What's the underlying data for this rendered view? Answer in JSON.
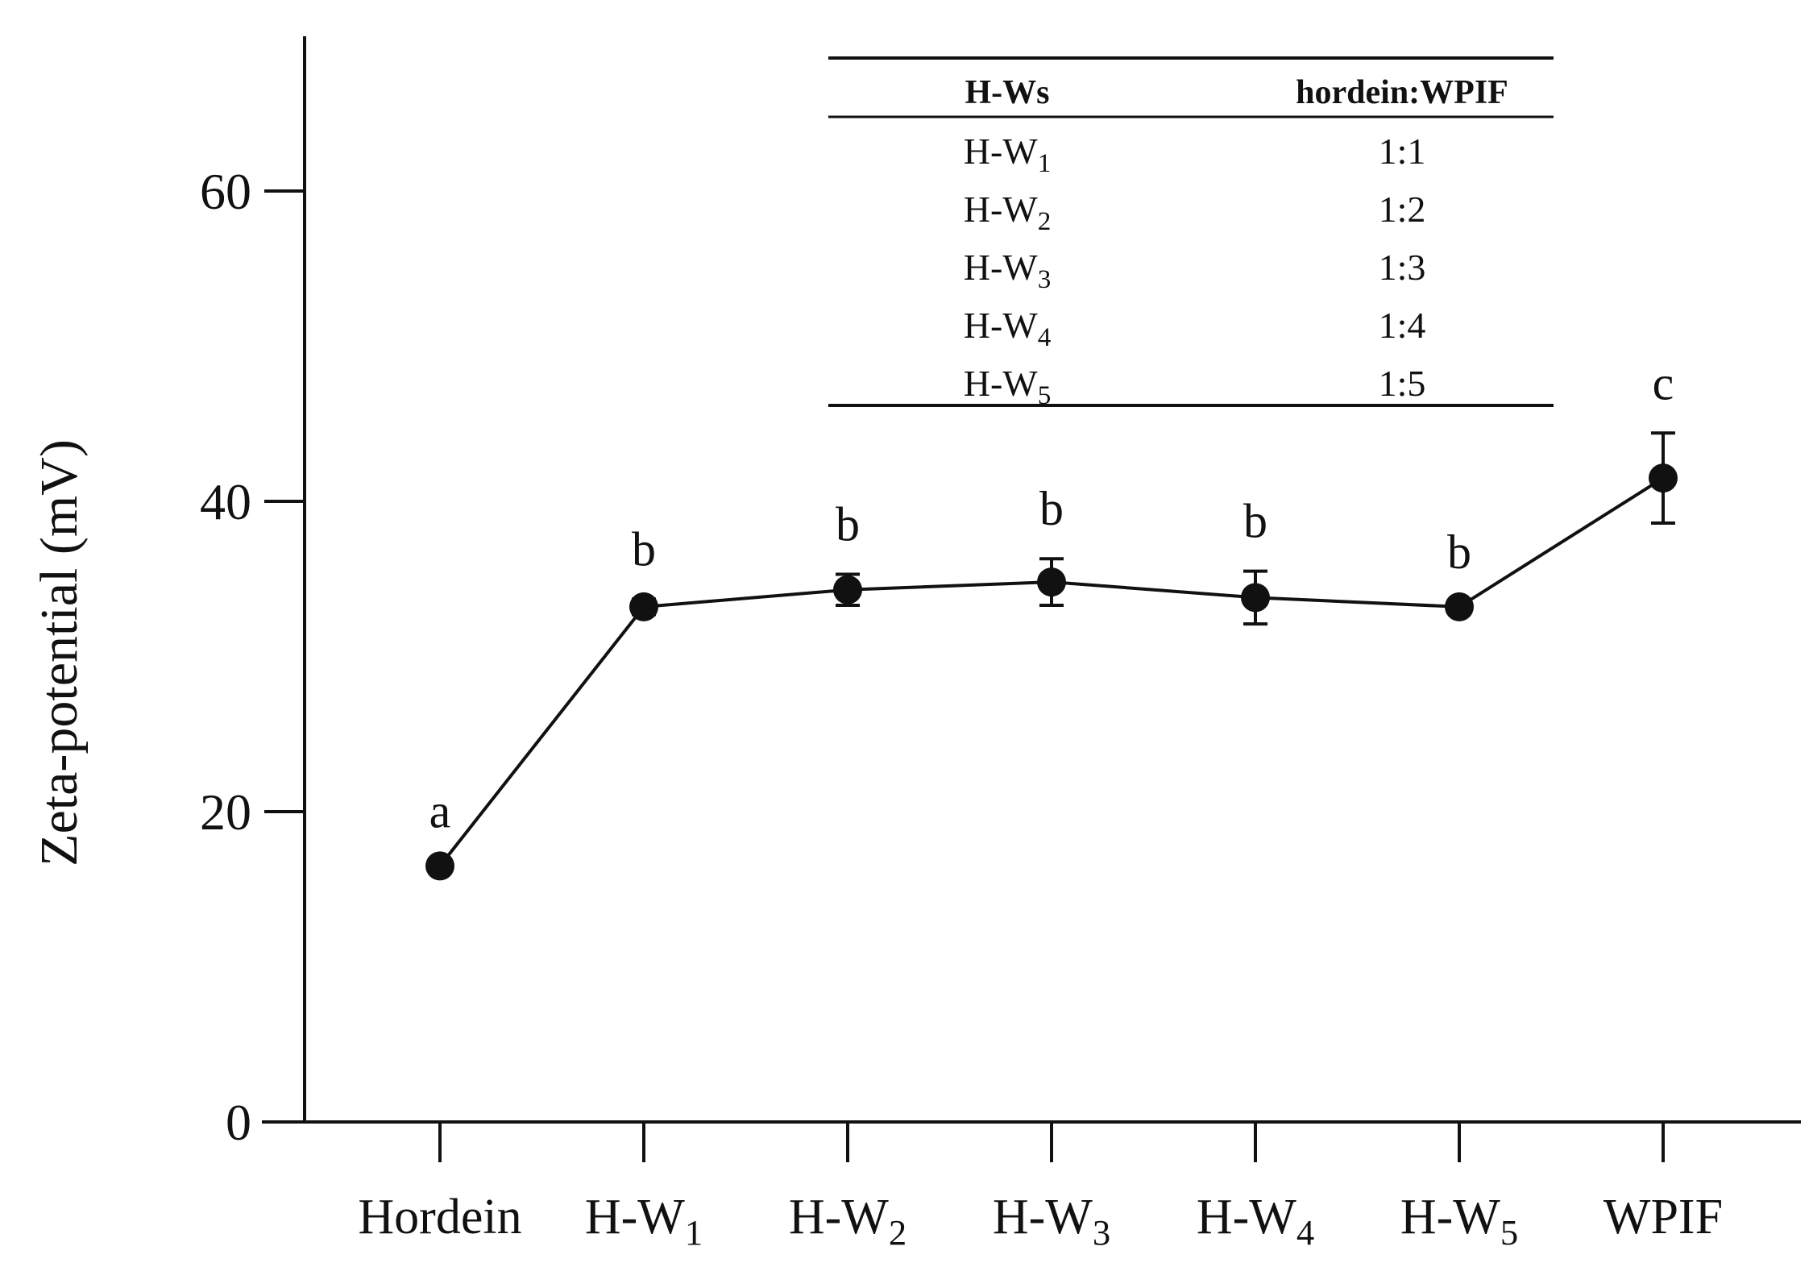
{
  "chart_data": {
    "type": "line",
    "ylabel": "Zeta-potential (mV)",
    "xlabel": "",
    "ylim": [
      0,
      70
    ],
    "yticks": [
      0,
      20,
      40,
      60
    ],
    "categories": [
      {
        "main": "Hordein",
        "sub": ""
      },
      {
        "main": "H-W",
        "sub": "1"
      },
      {
        "main": "H-W",
        "sub": "2"
      },
      {
        "main": "H-W",
        "sub": "3"
      },
      {
        "main": "H-W",
        "sub": "4"
      },
      {
        "main": "H-W",
        "sub": "5"
      },
      {
        "main": "WPIF",
        "sub": ""
      }
    ],
    "series": [
      {
        "values": [
          16.5,
          33.2,
          34.3,
          34.8,
          33.8,
          33.2,
          41.5
        ],
        "errors": [
          0.3,
          0.5,
          1.0,
          1.5,
          1.7,
          0.3,
          2.9
        ],
        "significance": [
          "a",
          "b",
          "b",
          "b",
          "b",
          "b",
          "c"
        ]
      }
    ],
    "legend": "none",
    "grid": false,
    "inset_table": {
      "headers": [
        "H-Ws",
        "hordein:WPIF"
      ],
      "rows": [
        {
          "name": "H-W",
          "sub": "1",
          "ratio": "1:1"
        },
        {
          "name": "H-W",
          "sub": "2",
          "ratio": "1:2"
        },
        {
          "name": "H-W",
          "sub": "3",
          "ratio": "1:3"
        },
        {
          "name": "H-W",
          "sub": "4",
          "ratio": "1:4"
        },
        {
          "name": "H-W",
          "sub": "5",
          "ratio": "1:5"
        }
      ]
    }
  }
}
